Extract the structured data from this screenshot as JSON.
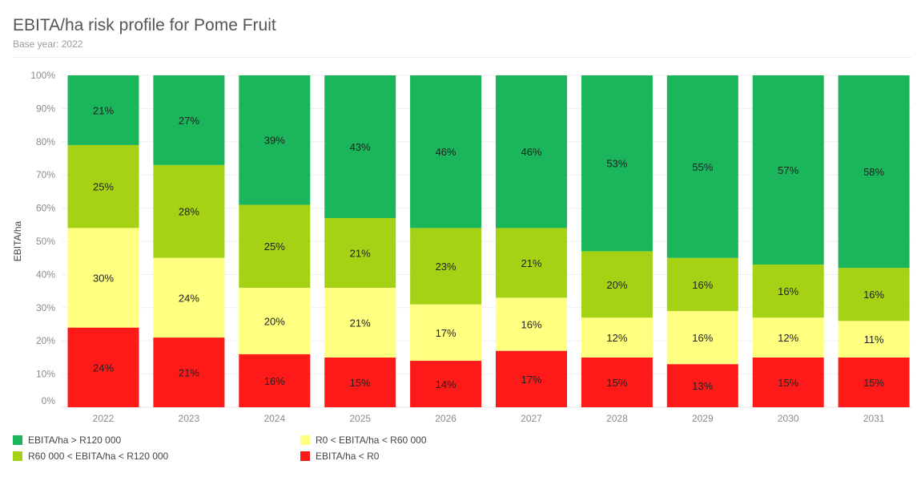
{
  "title": "EBITA/ha risk profile for Pome Fruit",
  "subtitle": "Base year: 2022",
  "chart_data": {
    "type": "bar",
    "stacked": true,
    "normalized": true,
    "title": "EBITA/ha risk profile for Pome Fruit",
    "subtitle": "Base year: 2022",
    "xlabel": "",
    "ylabel": "EBITA/ha",
    "ylim": [
      0,
      100
    ],
    "yticks": [
      "0%",
      "10%",
      "20%",
      "30%",
      "40%",
      "50%",
      "60%",
      "70%",
      "80%",
      "90%",
      "100%"
    ],
    "grid": true,
    "legend_position": "bottom",
    "categories": [
      "2022",
      "2023",
      "2024",
      "2025",
      "2026",
      "2027",
      "2028",
      "2029",
      "2030",
      "2031"
    ],
    "series": [
      {
        "name": "EBITA/ha < R0",
        "color": "#ff1a1a",
        "values": [
          24,
          21,
          16,
          15,
          14,
          17,
          15,
          13,
          15,
          15
        ]
      },
      {
        "name": "R0 < EBITA/ha < R60 000",
        "color": "#ffff80",
        "values": [
          30,
          24,
          20,
          21,
          17,
          16,
          12,
          16,
          12,
          11
        ]
      },
      {
        "name": "R60 000 < EBITA/ha < R120 000",
        "color": "#a6d215",
        "values": [
          25,
          28,
          25,
          21,
          23,
          21,
          20,
          16,
          16,
          16
        ]
      },
      {
        "name": "EBITA/ha > R120 000",
        "color": "#1bb55c",
        "values": [
          21,
          27,
          39,
          43,
          46,
          46,
          53,
          55,
          57,
          58
        ]
      }
    ]
  },
  "legend": [
    {
      "label": "EBITA/ha > R120 000",
      "color": "#1bb55c"
    },
    {
      "label": "R60 000 < EBITA/ha < R120 000",
      "color": "#a6d215"
    },
    {
      "label": "R0 < EBITA/ha < R60 000",
      "color": "#ffff80"
    },
    {
      "label": "EBITA/ha < R0",
      "color": "#ff1a1a"
    }
  ]
}
